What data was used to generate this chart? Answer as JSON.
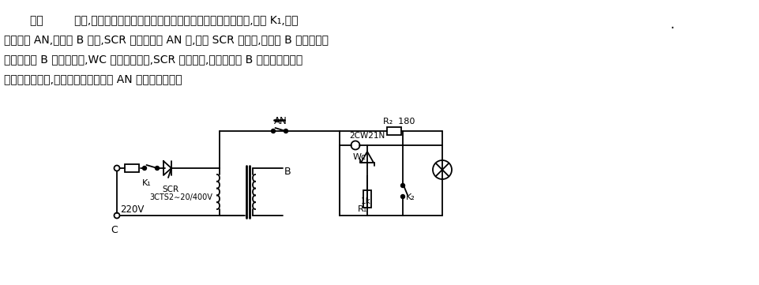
{
  "bg_color": "#ffffff",
  "line_color": "#000000",
  "text1": "如图         所示,由双向可控硅和稳压管构成保护电路。如图接入电网后,闭合 K₁,按动",
  "text2": "按鈕开关 AN,变压器 B 得电,SCR 导通。放开 AN 后,由于 SCR 已导通,变压器 B 正常供电。",
  "text3": "如果变压器 B 的次级短路,WC 两端电压为零,SCR 迅速关断,于是变压器 B 得到保护。变压",
  "text4": "器次级没有短路,只要按一下按鈕开关 AN 即可正常供电。",
  "dot_text": "."
}
